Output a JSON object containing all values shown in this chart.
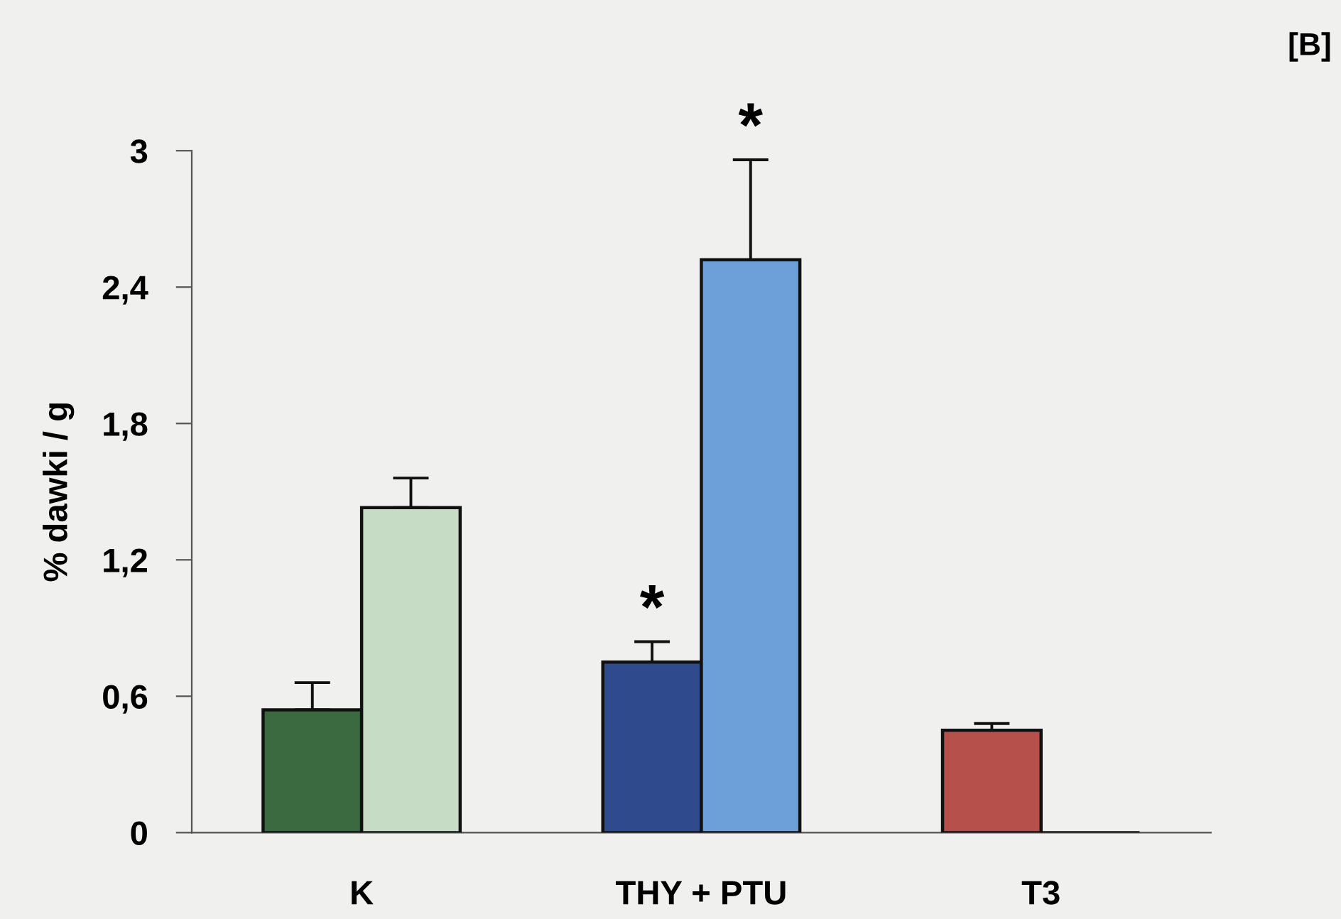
{
  "chart_data": {
    "type": "bar",
    "ylabel": "% dawki / g",
    "categories": [
      "K",
      "THY + PTU",
      "T3"
    ],
    "series": [
      {
        "colors": [
          "#3b6a40",
          "#2f4b8e",
          "#b5504a"
        ],
        "values": [
          0.54,
          0.75,
          0.45
        ],
        "errors": [
          [
            0.54,
            0.66
          ],
          [
            0.75,
            0.84
          ],
          [
            0.45,
            0.48
          ]
        ]
      },
      {
        "colors": [
          "#c6dcc4",
          "#6d9fd8",
          "#111111"
        ],
        "values": [
          1.43,
          2.52,
          0
        ],
        "errors": [
          [
            1.43,
            1.56
          ],
          [
            2.52,
            2.96
          ],
          null
        ]
      }
    ],
    "ylim": [
      0,
      3
    ],
    "yticks": [
      0,
      {
        "value": 0.6,
        "label": "0,6"
      },
      {
        "value": 1.2,
        "label": "1,2"
      },
      {
        "value": 1.8,
        "label": "1,8"
      },
      {
        "value": 2.4,
        "label": "2,4"
      },
      3
    ],
    "annotations": [
      {
        "text": "*",
        "x": "THY + PTU",
        "y": 0.75
      },
      {
        "text": "*",
        "x": "THY + PTU",
        "y": 2.52
      },
      "[B]"
    ]
  }
}
